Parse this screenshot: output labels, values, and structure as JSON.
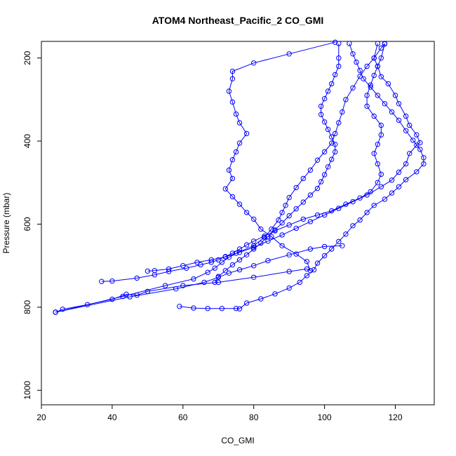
{
  "chart_data": {
    "type": "line",
    "title": "ATOM4 Northeast_Pacific_2 CO_GMI",
    "xlabel": "CO_GMI",
    "ylabel": "Pressure (mbar)",
    "xlim": [
      20,
      131
    ],
    "ylim": [
      1035,
      160
    ],
    "y_reversed": true,
    "x_ticks": [
      20,
      40,
      60,
      80,
      100,
      120
    ],
    "y_ticks": [
      200,
      400,
      600,
      800,
      1000
    ],
    "grid": false,
    "legend": "none",
    "color": "#0000ff",
    "marker": "open-circle",
    "series": [
      {
        "values": [
          [
            24,
            812
          ],
          [
            26,
            805
          ],
          [
            33,
            794
          ],
          [
            40,
            781
          ],
          [
            44,
            769
          ],
          [
            47,
            771
          ],
          [
            50,
            762
          ],
          [
            60,
            748
          ],
          [
            70,
            740
          ],
          [
            80,
            728
          ],
          [
            90,
            714
          ],
          [
            95,
            708
          ],
          [
            96,
            712
          ],
          [
            95,
            690
          ],
          [
            92,
            672
          ],
          [
            88,
            652
          ],
          [
            85,
            630
          ],
          [
            82,
            612
          ],
          [
            80,
            588
          ],
          [
            78,
            572
          ],
          [
            76,
            552
          ],
          [
            74,
            534
          ],
          [
            72,
            515
          ],
          [
            74,
            490
          ],
          [
            73,
            470
          ],
          [
            74,
            445
          ],
          [
            75,
            426
          ],
          [
            76,
            405
          ],
          [
            78,
            382
          ],
          [
            76,
            356
          ],
          [
            75,
            335
          ],
          [
            74,
            306
          ],
          [
            73,
            280
          ],
          [
            74,
            250
          ],
          [
            74,
            232
          ],
          [
            80,
            212
          ],
          [
            90,
            190
          ],
          [
            103,
            162
          ]
        ]
      },
      {
        "values": [
          [
            24,
            812
          ],
          [
            43,
            774
          ],
          [
            55,
            748
          ],
          [
            63,
            732
          ],
          [
            67,
            716
          ],
          [
            69,
            706
          ],
          [
            71,
            692
          ],
          [
            73,
            680
          ],
          [
            75,
            670
          ],
          [
            80,
            652
          ],
          [
            83,
            632
          ],
          [
            85,
            612
          ],
          [
            87,
            590
          ],
          [
            88,
            572
          ],
          [
            89,
            555
          ],
          [
            90,
            536
          ],
          [
            92,
            512
          ],
          [
            94,
            490
          ],
          [
            96,
            470
          ],
          [
            98,
            446
          ],
          [
            100,
            426
          ],
          [
            102,
            405
          ],
          [
            103,
            382
          ],
          [
            104,
            356
          ],
          [
            105,
            330
          ],
          [
            106,
            300
          ],
          [
            108,
            272
          ],
          [
            110,
            244
          ],
          [
            112,
            220
          ],
          [
            114,
            200
          ],
          [
            116,
            176
          ],
          [
            117,
            165
          ]
        ]
      },
      {
        "values": [
          [
            24,
            812
          ],
          [
            45,
            775
          ],
          [
            58,
            756
          ],
          [
            66,
            740
          ],
          [
            70,
            728
          ],
          [
            73,
            718
          ],
          [
            76,
            710
          ],
          [
            80,
            700
          ],
          [
            84,
            688
          ],
          [
            90,
            674
          ],
          [
            96,
            660
          ],
          [
            100,
            654
          ],
          [
            105,
            652
          ]
        ]
      },
      {
        "values": [
          [
            37,
            738
          ],
          [
            40,
            737
          ],
          [
            47,
            730
          ],
          [
            52,
            722
          ],
          [
            56,
            714
          ],
          [
            61,
            706
          ],
          [
            65,
            698
          ],
          [
            68,
            692
          ],
          [
            70,
            686
          ],
          [
            72,
            678
          ],
          [
            74,
            670
          ],
          [
            76,
            660
          ],
          [
            78,
            650
          ],
          [
            80,
            641
          ],
          [
            83,
            629
          ],
          [
            86,
            616
          ],
          [
            90,
            602
          ],
          [
            94,
            588
          ],
          [
            98,
            578
          ],
          [
            102,
            568
          ],
          [
            106,
            552
          ],
          [
            110,
            537
          ],
          [
            113,
            522
          ],
          [
            115,
            500
          ],
          [
            116,
            480
          ],
          [
            115,
            455
          ],
          [
            114,
            430
          ],
          [
            115,
            408
          ],
          [
            116,
            385
          ],
          [
            116,
            362
          ],
          [
            114,
            340
          ],
          [
            112,
            316
          ],
          [
            112,
            290
          ],
          [
            113,
            265
          ],
          [
            114,
            242
          ],
          [
            115,
            220
          ],
          [
            116,
            200
          ],
          [
            117,
            166
          ]
        ]
      },
      {
        "values": [
          [
            50,
            713
          ],
          [
            52,
            712
          ],
          [
            56,
            708
          ],
          [
            60,
            700
          ],
          [
            64,
            692
          ],
          [
            68,
            686
          ],
          [
            72,
            679
          ],
          [
            76,
            668
          ],
          [
            80,
            656
          ],
          [
            84,
            641
          ],
          [
            88,
            626
          ],
          [
            92,
            610
          ],
          [
            96,
            594
          ],
          [
            100,
            578
          ],
          [
            104,
            562
          ],
          [
            108,
            546
          ],
          [
            112,
            530
          ],
          [
            116,
            510
          ],
          [
            119,
            494
          ],
          [
            121,
            475
          ],
          [
            123,
            455
          ],
          [
            124,
            430
          ],
          [
            126,
            410
          ],
          [
            127,
            404
          ],
          [
            126,
            385
          ],
          [
            124,
            362
          ],
          [
            123,
            340
          ],
          [
            121,
            310
          ],
          [
            120,
            290
          ],
          [
            118,
            262
          ],
          [
            116,
            245
          ],
          [
            115,
            220
          ],
          [
            114,
            200
          ],
          [
            115,
            165
          ]
        ]
      },
      {
        "values": [
          [
            59,
            798
          ],
          [
            63,
            802
          ],
          [
            67,
            803
          ],
          [
            71,
            803
          ],
          [
            75,
            803
          ],
          [
            76,
            804
          ],
          [
            78,
            790
          ],
          [
            82,
            780
          ],
          [
            86,
            768
          ],
          [
            90,
            754
          ],
          [
            93,
            740
          ],
          [
            95,
            724
          ],
          [
            97,
            710
          ],
          [
            98,
            694
          ],
          [
            100,
            676
          ],
          [
            102,
            660
          ],
          [
            104,
            642
          ],
          [
            106,
            624
          ],
          [
            108,
            604
          ],
          [
            110,
            590
          ],
          [
            112,
            572
          ],
          [
            114,
            555
          ],
          [
            117,
            540
          ],
          [
            119,
            525
          ],
          [
            121,
            510
          ],
          [
            123,
            493
          ],
          [
            126,
            474
          ],
          [
            128,
            455
          ],
          [
            128,
            440
          ],
          [
            127,
            420
          ],
          [
            125,
            398
          ],
          [
            123,
            375
          ],
          [
            121,
            350
          ],
          [
            119,
            330
          ],
          [
            117,
            310
          ],
          [
            115,
            290
          ],
          [
            113,
            270
          ],
          [
            111,
            250
          ],
          [
            110,
            230
          ],
          [
            109,
            210
          ],
          [
            108,
            190
          ],
          [
            107,
            165
          ]
        ]
      },
      {
        "values": [
          [
            69,
            740
          ],
          [
            70,
            726
          ],
          [
            72,
            712
          ],
          [
            74,
            698
          ],
          [
            76,
            686
          ],
          [
            78,
            674
          ],
          [
            80,
            660
          ],
          [
            82,
            646
          ],
          [
            84,
            630
          ],
          [
            86,
            614
          ],
          [
            88,
            597
          ],
          [
            90,
            580
          ],
          [
            92,
            563
          ],
          [
            94,
            547
          ],
          [
            96,
            530
          ],
          [
            98,
            514
          ],
          [
            99,
            498
          ],
          [
            100,
            481
          ],
          [
            101,
            462
          ],
          [
            102,
            444
          ],
          [
            103,
            426
          ],
          [
            103,
            408
          ],
          [
            102,
            390
          ],
          [
            101,
            372
          ],
          [
            100,
            354
          ],
          [
            99,
            336
          ],
          [
            99,
            316
          ],
          [
            100,
            298
          ],
          [
            101,
            280
          ],
          [
            102,
            262
          ],
          [
            103,
            240
          ],
          [
            104,
            220
          ],
          [
            104,
            200
          ],
          [
            104,
            165
          ]
        ]
      }
    ]
  }
}
